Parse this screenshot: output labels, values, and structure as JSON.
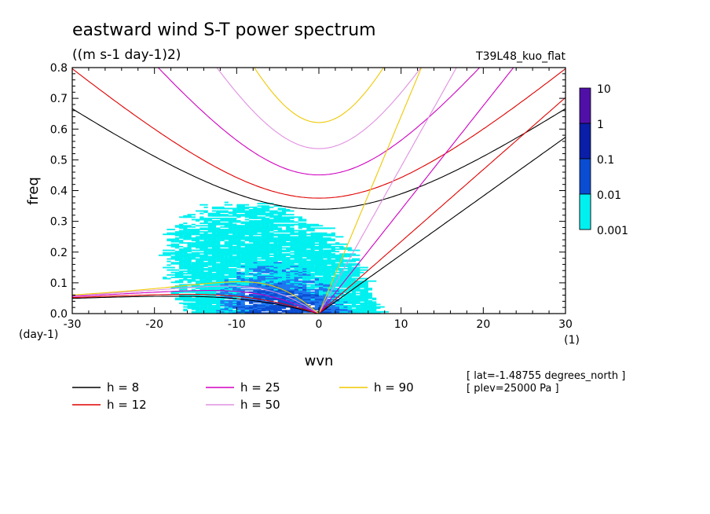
{
  "chart_data": {
    "type": "heatmap",
    "title": "eastward wind S-T power spectrum",
    "units": "((m s-1 day-1)2)",
    "run_label": "T39L48_kuo_flat",
    "xlabel": "wvn",
    "ylabel": "freq",
    "x_unit": "(1)",
    "y_unit": "(day-1)",
    "xlim": [
      -30,
      30
    ],
    "ylim": [
      0,
      0.8
    ],
    "x_ticks": [
      "-30",
      "-20",
      "-10",
      "0",
      "10",
      "20",
      "30"
    ],
    "x_tick_values": [
      -30,
      -20,
      -10,
      0,
      10,
      20,
      30
    ],
    "y_ticks": [
      "0.0",
      "0.1",
      "0.2",
      "0.3",
      "0.4",
      "0.5",
      "0.6",
      "0.7",
      "0.8"
    ],
    "y_tick_values": [
      0,
      0.1,
      0.2,
      0.3,
      0.4,
      0.5,
      0.6,
      0.7,
      0.8
    ],
    "colorbar": {
      "labels": [
        "10",
        "1",
        "0.1",
        "0.01",
        "0.001"
      ],
      "colors": [
        "#5010a8",
        "#0a1ea8",
        "#0a4cd2",
        "#1e78f0",
        "#00f0f0"
      ]
    },
    "dispersion_curves": [
      {
        "name": "h =  8",
        "h": 8,
        "color": "#000000"
      },
      {
        "name": "h = 12",
        "h": 12,
        "color": "#e00000"
      },
      {
        "name": "h = 25",
        "h": 25,
        "color": "#d000c0"
      },
      {
        "name": "h = 50",
        "h": 50,
        "color": "#e090e0"
      },
      {
        "name": "h = 90",
        "h": 90,
        "color": "#f0c800"
      }
    ],
    "annotations": [
      "[ lat=-1.48755 degrees_north ]",
      "[ plev=25000 Pa ]"
    ]
  }
}
